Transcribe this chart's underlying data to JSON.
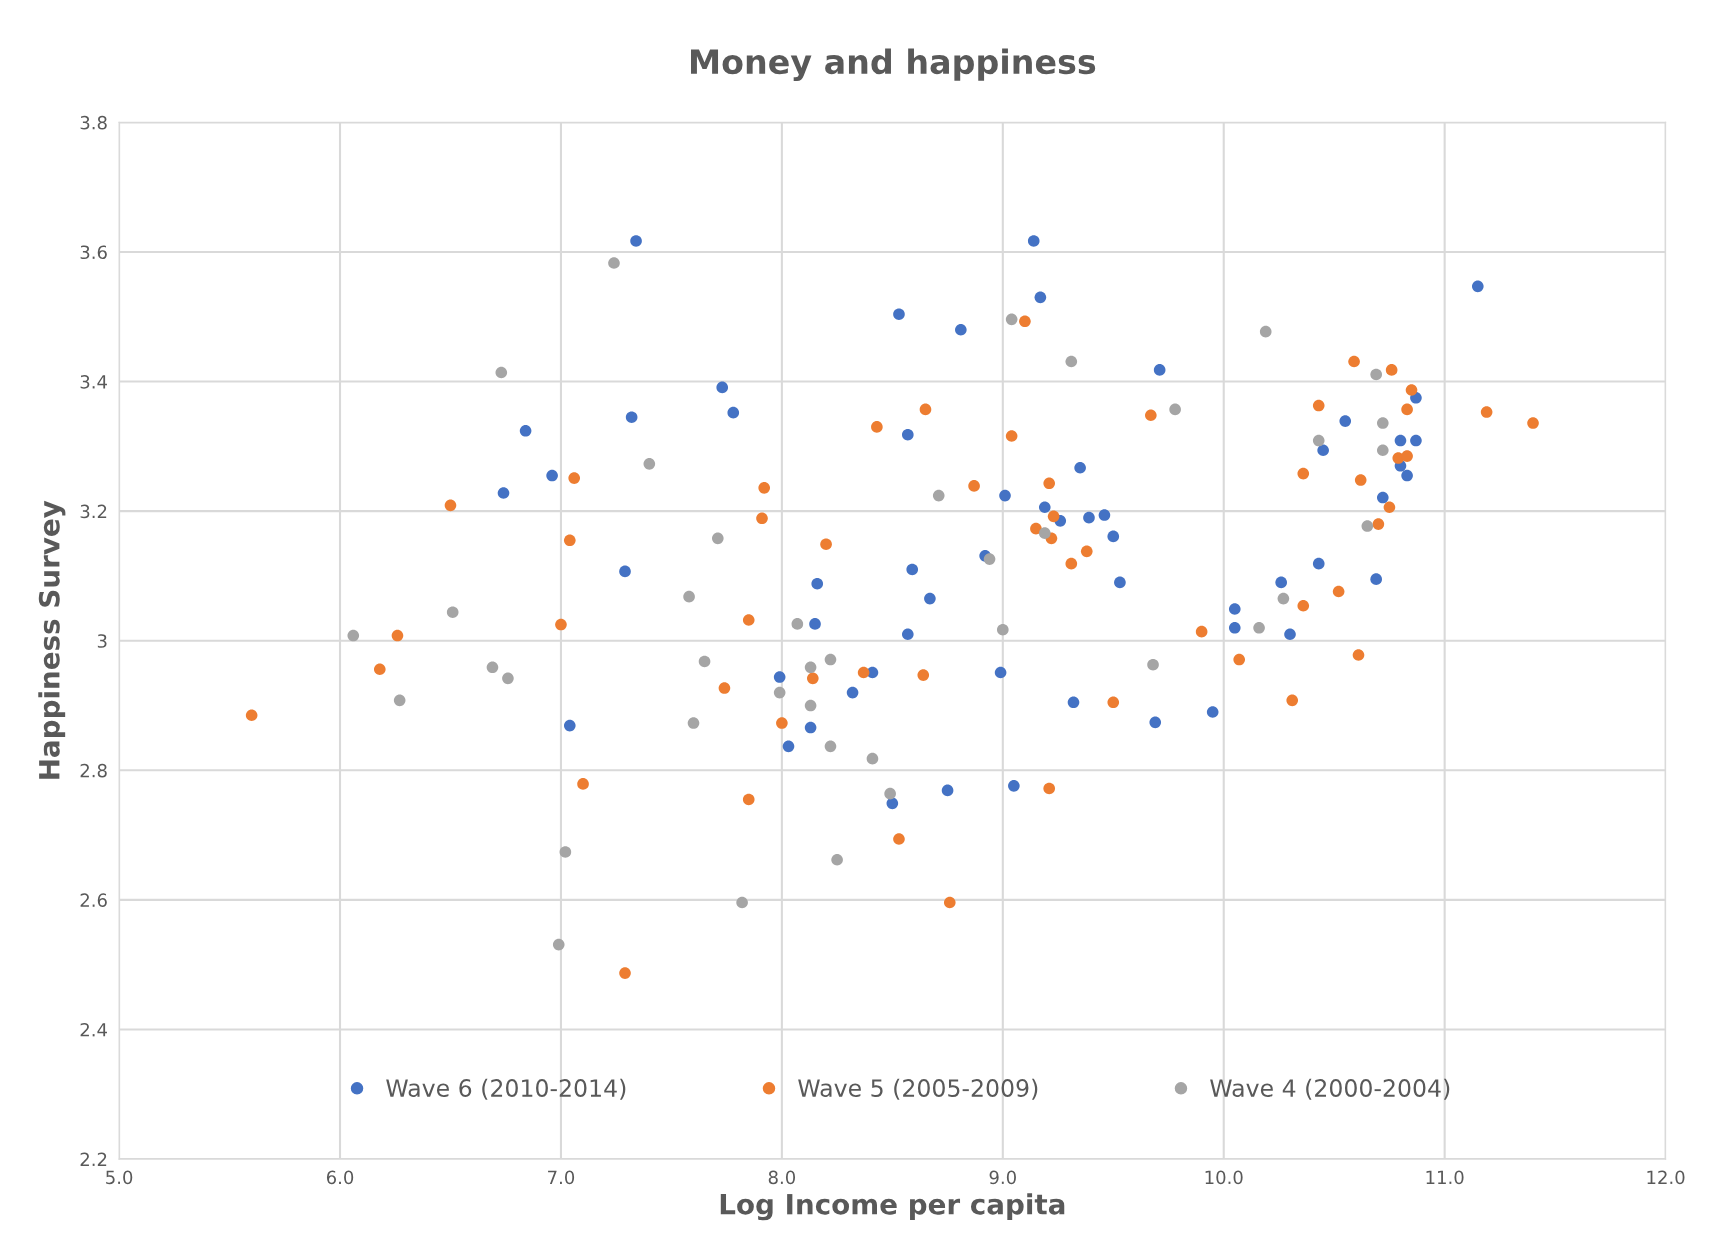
{
  "chart_data": {
    "type": "scatter",
    "title": "Money and happiness",
    "xlabel": "Log Income per capita",
    "ylabel": "Happiness Survey",
    "xlim": [
      5.0,
      12.0
    ],
    "ylim": [
      2.2,
      3.8
    ],
    "xticks": [
      {
        "value": 5,
        "label": "5.0"
      },
      {
        "value": 6,
        "label": "6.0"
      },
      {
        "value": 7,
        "label": "7.0"
      },
      {
        "value": 8,
        "label": "8.0"
      },
      {
        "value": 9,
        "label": "9.0"
      },
      {
        "value": 10,
        "label": "10.0"
      },
      {
        "value": 11,
        "label": "11.0"
      },
      {
        "value": 12,
        "label": "12.0"
      }
    ],
    "yticks": [
      2.2,
      2.4,
      2.6,
      2.8,
      3,
      3.2,
      3.4,
      3.6,
      3.8
    ],
    "grid": true,
    "legend": "bottom",
    "marker": "circle",
    "series": [
      {
        "name": "Wave 6 (2010-2014)",
        "color": "#4472c4",
        "x": [
          7.34,
          9.14,
          9.17,
          11.15,
          8.53,
          8.81,
          9.71,
          7.73,
          7.78,
          7.32,
          6.84,
          8.57,
          10.87,
          10.55,
          10.45,
          10.8,
          10.87,
          10.8,
          10.83,
          9.35,
          6.96,
          6.74,
          9.01,
          9.19,
          9.26,
          9.39,
          9.46,
          9.5,
          9.53,
          10.72,
          8.92,
          8.59,
          8.16,
          7.29,
          8.67,
          10.43,
          10.26,
          10.69,
          10.05,
          10.05,
          10.3,
          8.15,
          8.57,
          7.99,
          8.41,
          8.99,
          8.32,
          9.32,
          9.95,
          9.69,
          7.04,
          8.13,
          8.03,
          8.75,
          9.05,
          8.5
        ],
        "values": [
          3.617,
          3.617,
          3.53,
          3.547,
          3.504,
          3.48,
          3.418,
          3.391,
          3.352,
          3.345,
          3.324,
          3.318,
          3.375,
          3.339,
          3.294,
          3.309,
          3.309,
          3.27,
          3.255,
          3.267,
          3.255,
          3.228,
          3.224,
          3.206,
          3.185,
          3.19,
          3.194,
          3.161,
          3.09,
          3.221,
          3.131,
          3.11,
          3.088,
          3.107,
          3.065,
          3.119,
          3.09,
          3.095,
          3.049,
          3.02,
          3.01,
          3.026,
          3.01,
          2.944,
          2.951,
          2.951,
          2.92,
          2.905,
          2.89,
          2.874,
          2.869,
          2.866,
          2.837,
          2.769,
          2.776,
          2.749
        ]
      },
      {
        "name": "Wave 5 (2005-2009)",
        "color": "#ed7d31",
        "x": [
          5.6,
          6.18,
          6.26,
          6.5,
          7.0,
          7.04,
          7.06,
          7.1,
          7.29,
          7.74,
          7.85,
          7.85,
          7.91,
          7.92,
          8.0,
          8.14,
          8.2,
          8.37,
          8.43,
          8.53,
          8.65,
          8.64,
          8.76,
          8.87,
          9.1,
          9.04,
          9.15,
          9.21,
          9.23,
          9.22,
          9.21,
          9.31,
          9.38,
          9.5,
          9.67,
          9.9,
          10.07,
          10.31,
          10.36,
          10.36,
          10.43,
          10.52,
          10.59,
          10.61,
          10.62,
          10.7,
          10.76,
          10.75,
          10.79,
          10.83,
          10.83,
          10.85,
          11.19,
          11.4
        ],
        "values": [
          2.885,
          2.956,
          3.008,
          3.209,
          3.025,
          3.155,
          3.251,
          2.779,
          2.487,
          2.927,
          3.032,
          2.755,
          3.189,
          3.236,
          2.873,
          2.942,
          3.149,
          2.951,
          3.33,
          2.694,
          3.357,
          2.947,
          2.596,
          3.239,
          3.493,
          3.316,
          3.173,
          3.243,
          3.192,
          3.158,
          2.772,
          3.119,
          3.138,
          2.905,
          3.348,
          3.014,
          2.971,
          2.908,
          3.054,
          3.258,
          3.363,
          3.076,
          3.431,
          2.978,
          3.248,
          3.18,
          3.418,
          3.206,
          3.282,
          3.357,
          3.285,
          3.387,
          3.353,
          3.336
        ]
      },
      {
        "name": "Wave 4 (2000-2004)",
        "color": "#a5a5a5",
        "x": [
          6.06,
          6.27,
          6.51,
          6.69,
          6.73,
          6.76,
          6.99,
          7.02,
          7.24,
          7.4,
          7.58,
          7.6,
          7.65,
          7.71,
          7.82,
          7.99,
          8.07,
          8.13,
          8.13,
          8.22,
          8.22,
          8.25,
          8.41,
          8.49,
          8.71,
          8.94,
          9.0,
          9.04,
          9.19,
          9.31,
          9.68,
          9.78,
          10.16,
          10.19,
          10.27,
          10.43,
          10.65,
          10.69,
          10.72,
          10.72
        ],
        "values": [
          3.008,
          2.908,
          3.044,
          2.959,
          3.414,
          2.942,
          2.531,
          2.674,
          3.583,
          3.273,
          3.068,
          2.873,
          2.968,
          3.158,
          2.596,
          2.92,
          3.026,
          2.959,
          2.9,
          2.971,
          2.837,
          2.662,
          2.818,
          2.764,
          3.224,
          3.126,
          3.017,
          3.496,
          3.166,
          3.431,
          2.963,
          3.357,
          3.02,
          3.477,
          3.065,
          3.309,
          3.177,
          3.411,
          3.336,
          3.294
        ]
      }
    ]
  }
}
